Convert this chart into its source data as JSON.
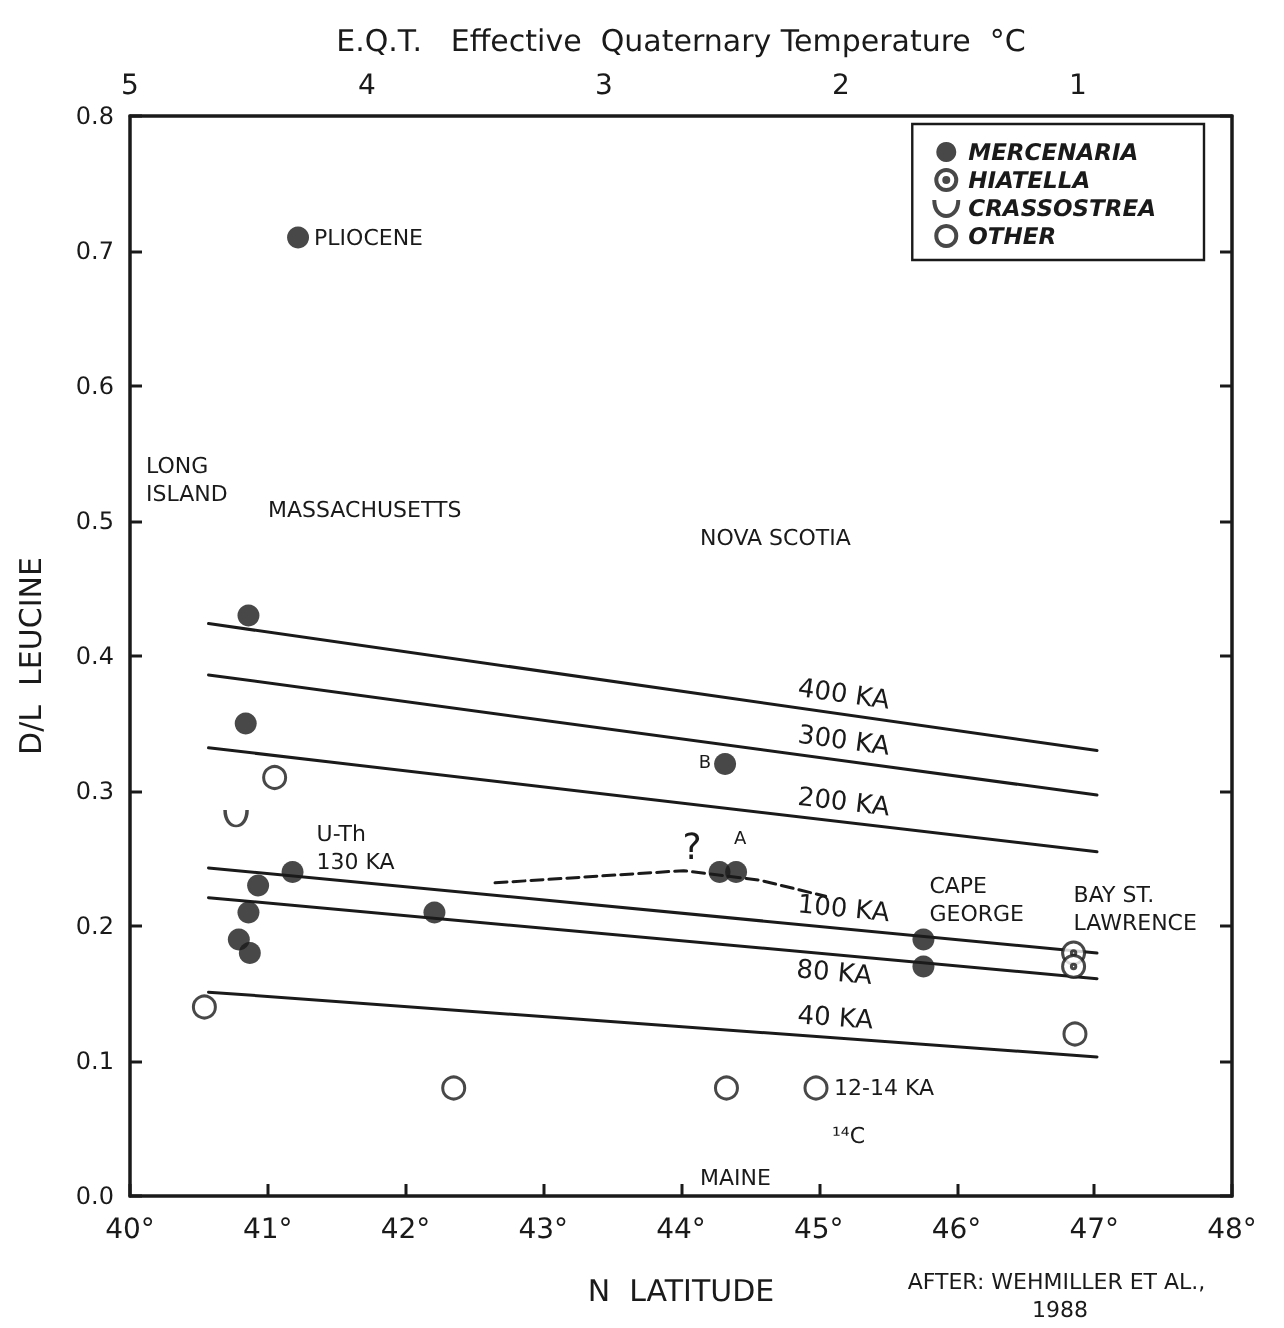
{
  "chart_data": {
    "type": "scatter",
    "x2label": "E.Q.T.   Effective  Quaternary Temperature  °C",
    "xlabel": "N  LATITUDE",
    "ylabel": "D/L  LEUCINE",
    "xlim": [
      40,
      48
    ],
    "xticks": [
      {
        "value": 40,
        "label": "40°"
      },
      {
        "value": 41,
        "label": "41°"
      },
      {
        "value": 42,
        "label": "42°"
      },
      {
        "value": 43,
        "label": "43°"
      },
      {
        "value": 44,
        "label": "44°"
      },
      {
        "value": 45,
        "label": "45°"
      },
      {
        "value": 46,
        "label": "46°"
      },
      {
        "value": 47,
        "label": "47°"
      },
      {
        "value": 48,
        "label": "48°"
      }
    ],
    "x2lim": [
      5,
      0.35
    ],
    "x2ticks": [
      5,
      4,
      3,
      2,
      1
    ],
    "ylim": [
      0,
      0.8
    ],
    "yticks": [
      {
        "value": 0,
        "label": "0.0"
      },
      0.1,
      0.2,
      0.3,
      0.4,
      0.5,
      0.6,
      0.7,
      0.8
    ],
    "grid": false,
    "legend": "top right",
    "marker": "circle",
    "series": [
      {
        "name": "MERCENARIA",
        "color": "#1a1a1a",
        "x": [
          41.22,
          40.86,
          40.84,
          40.93,
          41.18,
          40.86,
          40.79,
          40.87,
          42.21,
          44.32,
          44.28,
          44.4,
          45.76,
          45.76
        ],
        "values": [
          0.71,
          0.43,
          0.35,
          0.23,
          0.24,
          0.21,
          0.19,
          0.18,
          0.21,
          0.32,
          0.24,
          0.24,
          0.19,
          0.17
        ]
      },
      {
        "name": "HIATELLA",
        "color": "#1a1a1a",
        "x": [
          46.85,
          46.85
        ],
        "values": [
          0.18,
          0.17
        ]
      },
      {
        "name": "CRASSOSTREA",
        "marker": "cross",
        "color": "#1a1a1a",
        "x": [
          40.77
        ],
        "values": [
          0.28
        ]
      },
      {
        "name": "OTHER",
        "color": "#1a1a1a",
        "x": [
          41.05,
          40.54,
          42.35,
          44.33,
          44.98,
          46.86
        ],
        "values": [
          0.31,
          0.14,
          0.08,
          0.08,
          0.08,
          0.12
        ]
      },
      {
        "name": "400 KA",
        "type": "line",
        "marker": "none",
        "color": "#1a1a1a",
        "x": [
          40.57,
          47.02
        ],
        "values": [
          0.424,
          0.33
        ]
      },
      {
        "name": "300 KA",
        "type": "line",
        "marker": "none",
        "color": "#1a1a1a",
        "x": [
          40.57,
          47.02
        ],
        "values": [
          0.386,
          0.297
        ]
      },
      {
        "name": "200 KA",
        "type": "line",
        "marker": "none",
        "color": "#1a1a1a",
        "x": [
          40.57,
          47.02
        ],
        "values": [
          0.332,
          0.255
        ]
      },
      {
        "name": "100 KA",
        "type": "line",
        "marker": "none",
        "color": "#1a1a1a",
        "x": [
          40.57,
          47.02
        ],
        "values": [
          0.243,
          0.18
        ]
      },
      {
        "name": "80 KA",
        "type": "line",
        "marker": "none",
        "color": "#1a1a1a",
        "x": [
          40.57,
          47.02
        ],
        "values": [
          0.221,
          0.161
        ]
      },
      {
        "name": "40 KA",
        "type": "line",
        "marker": "none",
        "color": "#1a1a1a",
        "x": [
          40.57,
          47.02
        ],
        "values": [
          0.151,
          0.103
        ]
      },
      {
        "type": "line",
        "marker": "none",
        "line_style": "dashed",
        "color": "#1a1a1a",
        "x": [
          42.65,
          44.02,
          44.57,
          45.05
        ],
        "values": [
          0.232,
          0.241,
          0.234,
          0.222
        ]
      }
    ],
    "annotations": [
      {
        "text": "PLIOCENE",
        "x": 41.22,
        "y": 0.71
      },
      "LONG ISLAND",
      "MASSACHUSETTS",
      "NOVA SCOTIA",
      "MAINE",
      {
        "text": "U-Th 130 KA",
        "x": 41.18,
        "y": 0.24
      },
      {
        "text": "CAPE GEORGE",
        "x": 45.76,
        "y": 0.19
      },
      {
        "text": "BAY ST. LAWRENCE",
        "x": 46.85,
        "y": 0.18
      },
      {
        "text": "12-14 KA",
        "x": 44.98,
        "y": 0.08
      },
      "¹⁴C",
      {
        "text": "B",
        "x": 44.32,
        "y": 0.32
      },
      {
        "text": "A",
        "x": 44.4,
        "y": 0.24
      },
      {
        "text": "?",
        "x": 44.11,
        "y": 0.246
      },
      "AFTER: WEHMILLER ET AL., 1988"
    ]
  }
}
